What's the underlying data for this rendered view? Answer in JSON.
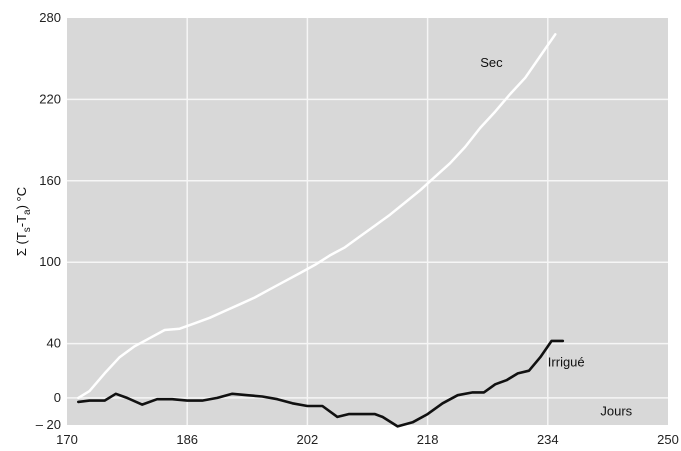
{
  "chart_data": {
    "type": "line",
    "title": "",
    "xlabel": "",
    "xunit_annotation": "Jours",
    "ylabel_parts": {
      "prefix": "Σ (T",
      "sub1": "s",
      "mid": "-T",
      "sub2": "a",
      "suffix": ") °C"
    },
    "xlim": [
      170,
      250
    ],
    "ylim": [
      -20,
      280
    ],
    "xticks": [
      170,
      186,
      202,
      218,
      234,
      250
    ],
    "yticks": [
      -20,
      0,
      40,
      100,
      160,
      220,
      280
    ],
    "ytick_labels": [
      "– 20",
      "0",
      "40",
      "100",
      "160",
      "220",
      "280"
    ],
    "grid": true,
    "background_color": "#d8d8d8",
    "series": [
      {
        "name": "Sec",
        "color": "#ffffff",
        "x": [
          171.5,
          173,
          175,
          177,
          179,
          181,
          183,
          185,
          187,
          189,
          191,
          193,
          195,
          197,
          199,
          201,
          203,
          205,
          207,
          209,
          211,
          213,
          215,
          217,
          219,
          221,
          223,
          225,
          227,
          229,
          231,
          233,
          235
        ],
        "y": [
          0,
          5,
          18,
          30,
          38,
          44,
          50,
          51,
          55,
          59,
          64,
          69,
          74,
          80,
          86,
          92,
          98,
          105,
          111,
          119,
          127,
          135,
          144,
          153,
          163,
          173,
          185,
          199,
          211,
          224,
          236,
          252,
          268
        ]
      },
      {
        "name": "Irrigué",
        "color": "#111111",
        "x": [
          171.5,
          173,
          175,
          176.5,
          178,
          180,
          182,
          184,
          186,
          188,
          190,
          192,
          194,
          196,
          198,
          200,
          202,
          204,
          206,
          207.5,
          209,
          211,
          212,
          214,
          216,
          218,
          220,
          222,
          224,
          225.5,
          227,
          228.5,
          230,
          231.5,
          233,
          234.5,
          236
        ],
        "y": [
          -3,
          -2,
          -2,
          3,
          0,
          -5,
          -1,
          -1,
          -2,
          -2,
          0,
          3,
          2,
          1,
          -1,
          -4,
          -6,
          -6,
          -14,
          -12,
          -12,
          -12,
          -14,
          -21,
          -18,
          -12,
          -4,
          2,
          4,
          4,
          10,
          13,
          18,
          20,
          30,
          42,
          42
        ]
      }
    ],
    "annotations": [
      {
        "text": "Sec",
        "x": 225,
        "y": 244
      },
      {
        "text": "Irrigué",
        "x": 234,
        "y": 23
      },
      {
        "text": "Jours",
        "x": 241,
        "y": -13
      }
    ]
  }
}
